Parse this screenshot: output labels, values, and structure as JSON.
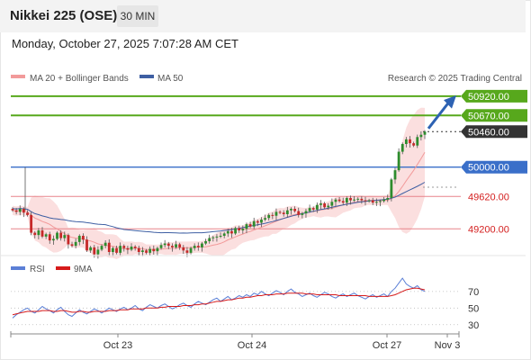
{
  "header": {
    "title": "Nikkei 225 (OSE)",
    "timeframe": "30 MIN",
    "datetime": "Monday, October 27, 2025 7:07:28 AM CET",
    "source": "Research © 2025 Trading Central"
  },
  "colors": {
    "resistance": "#57a81c",
    "pivot": "#3a6fc9",
    "support": "#e8848a",
    "last_price": "#333333",
    "bollinger_fill": "#f9d4d4",
    "ma20": "#f29a9a",
    "ma50": "#3e5fa3",
    "rsi": "#5b7fd6",
    "rsi_ma": "#d61a1a",
    "arrow": "#2d62b3"
  },
  "chart_data": [
    {
      "type": "candlestick",
      "legend": [
        {
          "name": "MA 20 + Bollinger Bands",
          "color": "#f29a9a"
        },
        {
          "name": "MA 50",
          "color": "#3e5fa3"
        }
      ],
      "x_ticks": [
        "Oct 23",
        "Oct 24",
        "Oct 27",
        "Nov 3"
      ],
      "y_range": [
        48900,
        51000
      ],
      "levels": [
        {
          "value": 50920,
          "label": "50920.00",
          "kind": "resistance"
        },
        {
          "value": 50670,
          "label": "50670.00",
          "kind": "resistance"
        },
        {
          "value": 50460,
          "label": "50460.00",
          "kind": "last"
        },
        {
          "value": 50000,
          "label": "50000.00",
          "kind": "pivot"
        },
        {
          "value": 49620,
          "label": "49620.00",
          "kind": "support"
        },
        {
          "value": 49200,
          "label": "49200.00",
          "kind": "support"
        }
      ],
      "close": [
        49440,
        49420,
        49460,
        49410,
        49380,
        49150,
        49120,
        49180,
        49100,
        49130,
        49050,
        49070,
        49150,
        49080,
        49120,
        49000,
        48980,
        49030,
        49110,
        49060,
        48920,
        48960,
        48870,
        48930,
        48980,
        49020,
        48900,
        48950,
        48890,
        48980,
        48950,
        48930,
        48970,
        48950,
        48900,
        48920,
        48890,
        48940,
        48910,
        48950,
        48990,
        49010,
        48980,
        48960,
        49000,
        48960,
        48920,
        48890,
        48950,
        48980,
        48960,
        49010,
        49040,
        49080,
        49090,
        49100,
        49110,
        49140,
        49170,
        49140,
        49210,
        49180,
        49200,
        49260,
        49230,
        49300,
        49280,
        49320,
        49340,
        49380,
        49370,
        49420,
        49410,
        49390,
        49440,
        49460,
        49430,
        49380,
        49400,
        49430,
        49470,
        49450,
        49510,
        49530,
        49480,
        49500,
        49550,
        49580,
        49560,
        49540,
        49600,
        49570,
        49580,
        49590,
        49570,
        49560,
        49570,
        49540,
        49550,
        49560,
        49580,
        49600,
        49840,
        49960,
        50200,
        50300,
        50360,
        50310,
        50280,
        50390,
        50420,
        50460
      ],
      "ma20_start": 49440,
      "ma20_end": 49910,
      "ma50_start": 49520,
      "ma50_end": 49740
    },
    {
      "type": "line",
      "legend": [
        {
          "name": "RSI",
          "color": "#5b7fd6"
        },
        {
          "name": "9MA",
          "color": "#d61a1a"
        }
      ],
      "y_ticks": [
        70,
        50,
        30
      ],
      "y_range": [
        0,
        100
      ],
      "rsi": [
        38,
        42,
        45,
        48,
        50,
        46,
        44,
        48,
        52,
        49,
        47,
        44,
        48,
        51,
        46,
        42,
        40,
        44,
        48,
        45,
        43,
        46,
        49,
        47,
        44,
        47,
        50,
        48,
        46,
        49,
        51,
        48,
        50,
        53,
        49,
        47,
        51,
        54,
        52,
        50,
        53,
        55,
        52,
        49,
        51,
        54,
        56,
        53,
        51,
        55,
        58,
        56,
        54,
        57,
        60,
        62,
        58,
        61,
        64,
        60,
        62,
        65,
        63,
        66,
        64,
        68,
        66,
        70,
        67,
        65,
        68,
        71,
        69,
        66,
        70,
        73,
        69,
        67,
        64,
        66,
        68,
        65,
        63,
        66,
        69,
        67,
        64,
        62,
        65,
        67,
        64,
        66,
        68,
        65,
        63,
        61,
        64,
        66,
        63,
        65,
        67,
        64,
        70,
        74,
        80,
        86,
        79,
        76,
        74,
        77,
        72,
        70
      ],
      "rsi_ma": [
        42,
        43,
        44,
        45,
        46,
        46,
        46,
        46,
        47,
        47,
        47,
        46,
        46,
        47,
        47,
        46,
        45,
        45,
        46,
        46,
        45,
        45,
        46,
        46,
        46,
        46,
        47,
        47,
        47,
        48,
        48,
        48,
        49,
        49,
        49,
        49,
        50,
        50,
        50,
        50,
        51,
        51,
        52,
        52,
        52,
        52,
        53,
        53,
        53,
        54,
        54,
        55,
        55,
        56,
        57,
        58,
        58,
        59,
        60,
        60,
        61,
        62,
        62,
        63,
        63,
        64,
        65,
        65,
        66,
        66,
        66,
        67,
        67,
        67,
        68,
        68,
        68,
        68,
        68,
        67,
        67,
        67,
        66,
        66,
        66,
        66,
        66,
        66,
        65,
        65,
        65,
        65,
        65,
        65,
        65,
        65,
        64,
        64,
        64,
        64,
        64,
        64,
        65,
        66,
        68,
        70,
        72,
        73,
        74,
        74,
        73,
        72
      ]
    }
  ]
}
